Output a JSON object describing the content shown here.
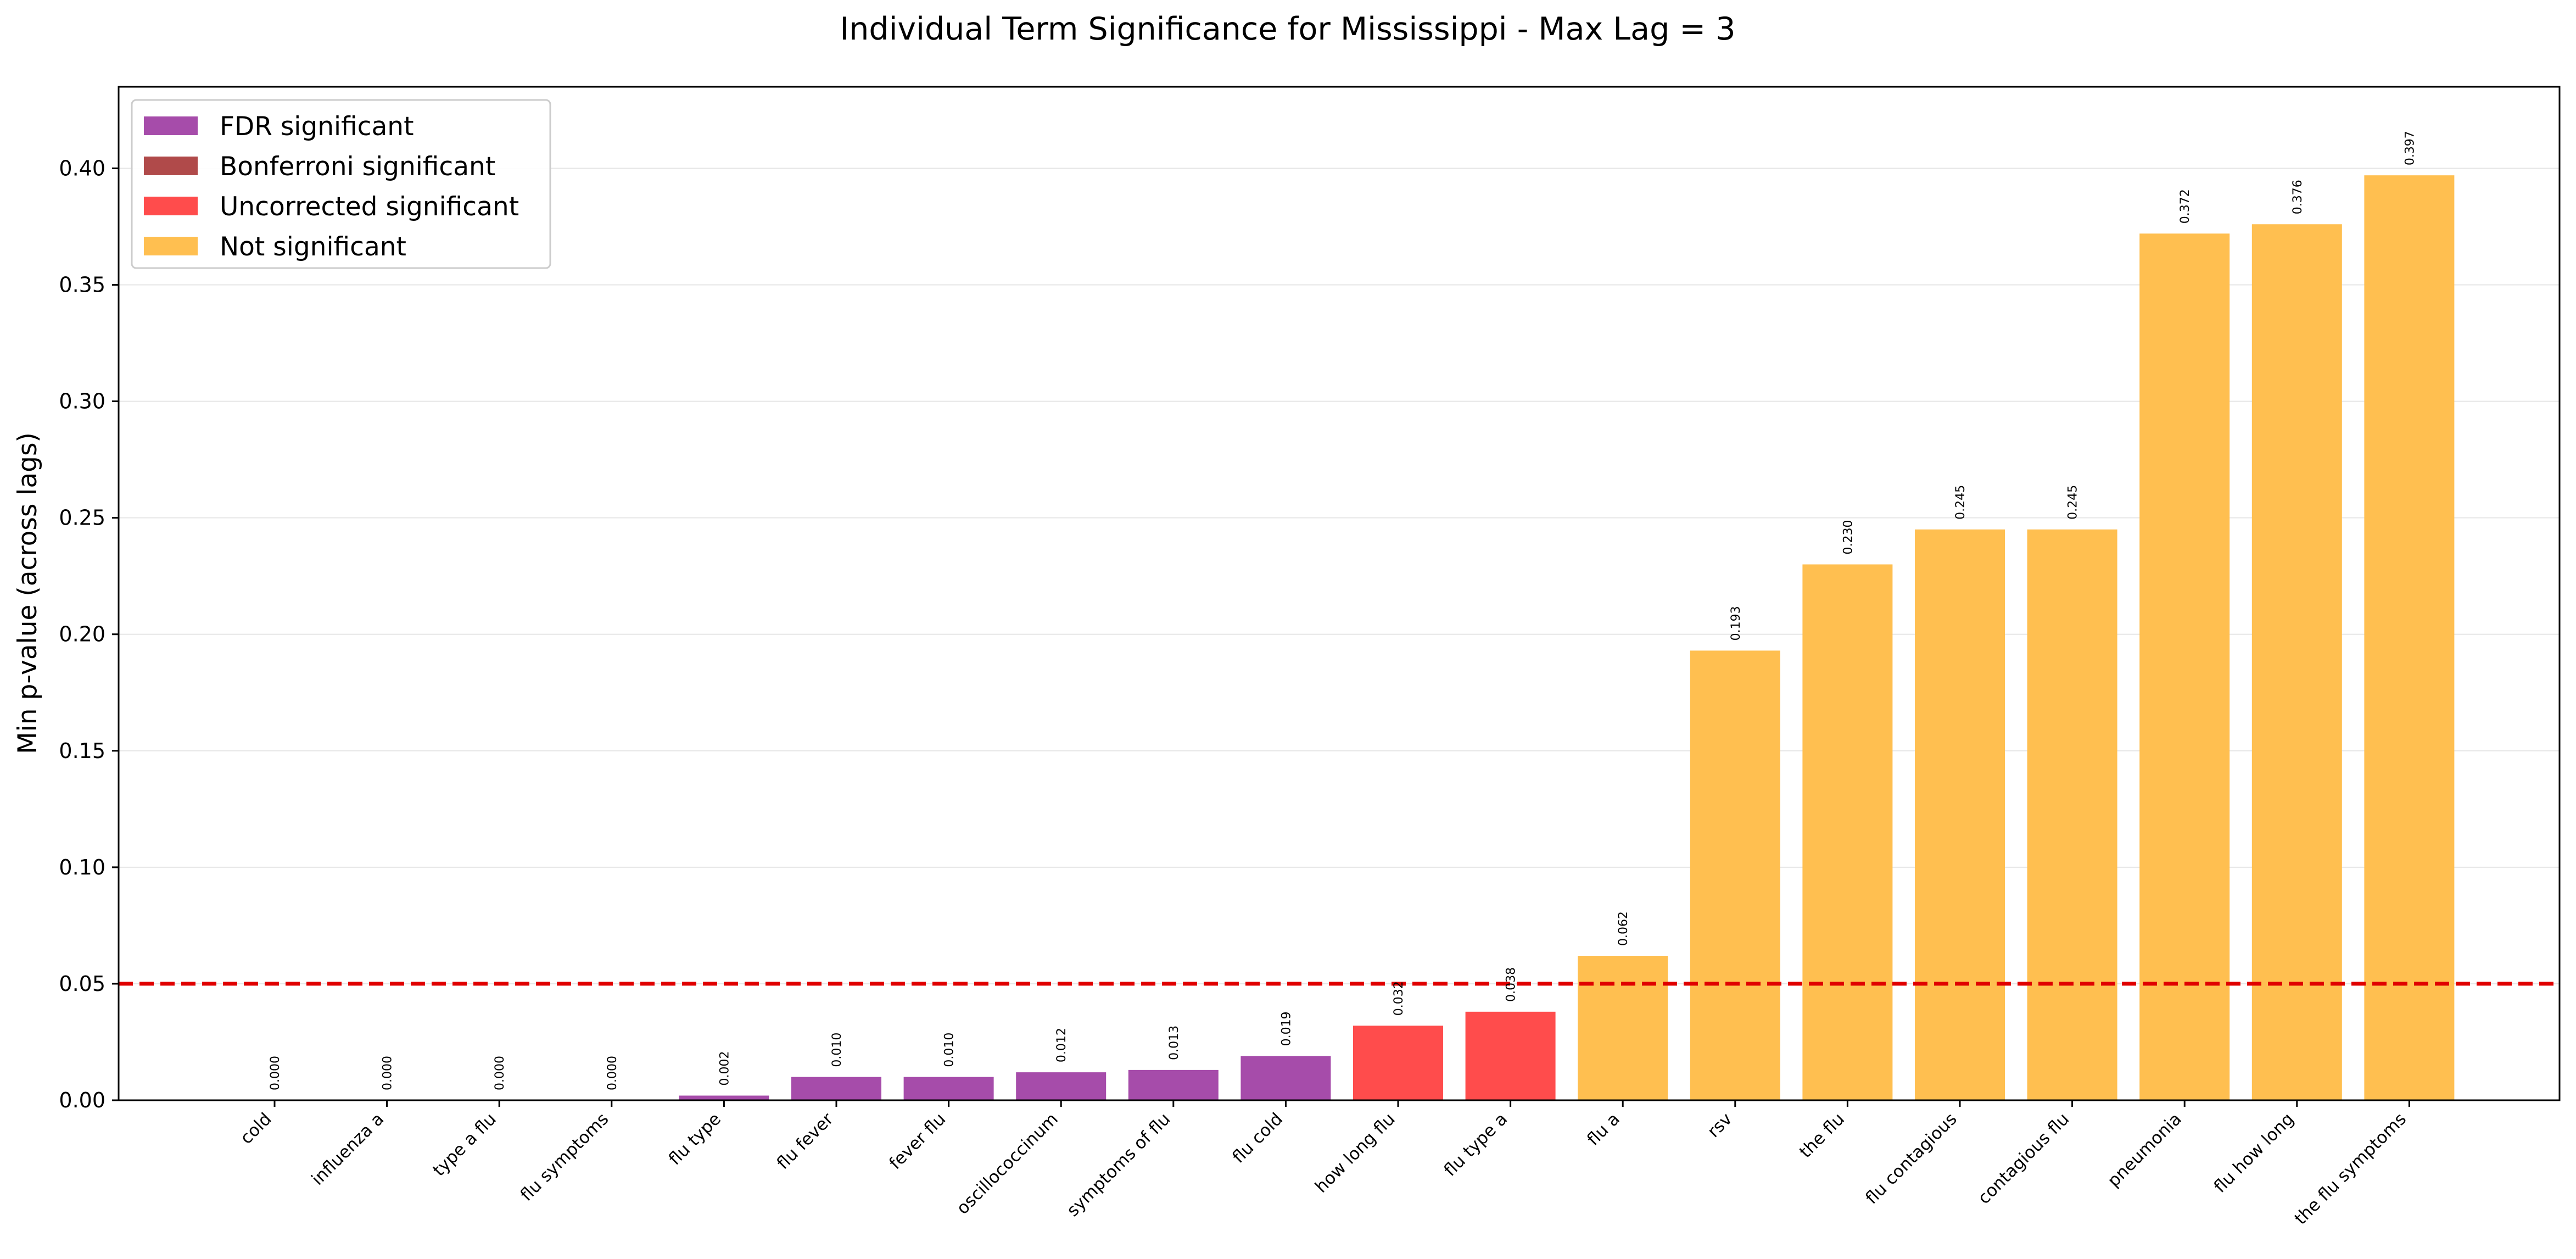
{
  "chart_data": {
    "type": "bar",
    "title": "Individual Term Significance for Mississippi - Max Lag = 3",
    "xlabel": "",
    "ylabel": "Min p-value (across lags)",
    "ylim": [
      0,
      0.435
    ],
    "yticks": [
      "0.00",
      "0.05",
      "0.10",
      "0.15",
      "0.20",
      "0.25",
      "0.30",
      "0.35",
      "0.40"
    ],
    "grid": "horizontal",
    "threshold": 0.05,
    "legend_position": "top-left",
    "legend": [
      {
        "key": "fdr",
        "label": "FDR significant",
        "color": "#A64CAA"
      },
      {
        "key": "bonferroni",
        "label": "Bonferroni significant",
        "color": "#B04A4A"
      },
      {
        "key": "uncorrected",
        "label": "Uncorrected significant",
        "color": "#FF4C4C"
      },
      {
        "key": "not",
        "label": "Not significant",
        "color": "#FFBF50"
      }
    ],
    "categories": [
      "cold",
      "influenza a",
      "type a flu",
      "flu symptoms",
      "flu type",
      "flu fever",
      "fever flu",
      "oscillococcinum",
      "symptoms of flu",
      "flu cold",
      "how long flu",
      "flu type a",
      "flu a",
      "rsv",
      "the flu",
      "flu contagious",
      "contagious flu",
      "pneumonia",
      "flu how long",
      "the flu symptoms"
    ],
    "values": [
      0.0,
      0.0,
      0.0,
      0.0,
      0.002,
      0.01,
      0.01,
      0.012,
      0.013,
      0.019,
      0.032,
      0.038,
      0.062,
      0.193,
      0.23,
      0.245,
      0.245,
      0.372,
      0.376,
      0.397
    ],
    "value_labels": [
      "0.000",
      "0.000",
      "0.000",
      "0.000",
      "0.002",
      "0.010",
      "0.010",
      "0.012",
      "0.013",
      "0.019",
      "0.032",
      "0.038",
      "0.062",
      "0.193",
      "0.230",
      "0.245",
      "0.245",
      "0.372",
      "0.376",
      "0.397"
    ],
    "significance": [
      "fdr",
      "fdr",
      "fdr",
      "fdr",
      "fdr",
      "fdr",
      "fdr",
      "fdr",
      "fdr",
      "fdr",
      "uncorrected",
      "uncorrected",
      "not",
      "not",
      "not",
      "not",
      "not",
      "not",
      "not",
      "not"
    ],
    "threshold_color": "#E00000",
    "grid_color": "#E6E6E6"
  }
}
